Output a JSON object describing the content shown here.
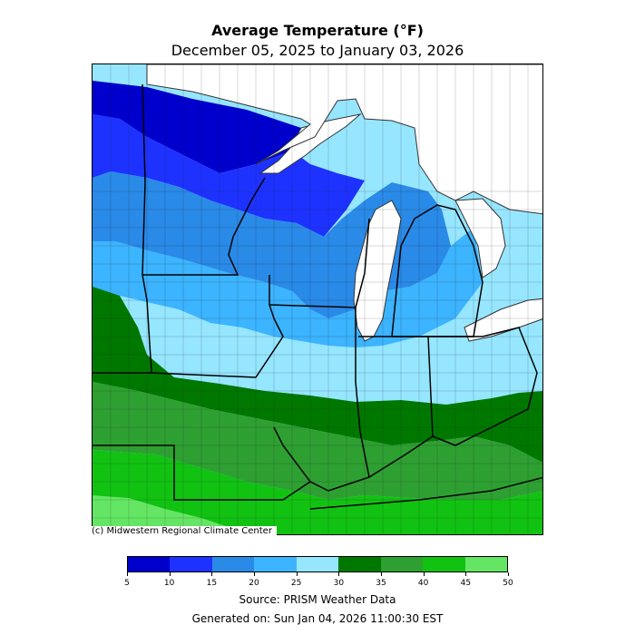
{
  "title": "Average Temperature (°F)",
  "subtitle": "December 05, 2025 to January 03, 2026",
  "credit": "(c) Midwestern Regional Climate Center",
  "source": "Source: PRISM Weather Data",
  "generated": "Generated on: Sun Jan 04, 2026 11:00:30 EST",
  "legend": {
    "bins": [
      {
        "min": 5,
        "max": 10,
        "color": "#0000cd"
      },
      {
        "min": 10,
        "max": 15,
        "color": "#1e32ff"
      },
      {
        "min": 15,
        "max": 20,
        "color": "#2a8ae8"
      },
      {
        "min": 20,
        "max": 25,
        "color": "#3cb4ff"
      },
      {
        "min": 25,
        "max": 30,
        "color": "#96e6ff"
      },
      {
        "min": 30,
        "max": 35,
        "color": "#007800"
      },
      {
        "min": 35,
        "max": 40,
        "color": "#2ea032"
      },
      {
        "min": 40,
        "max": 45,
        "color": "#12c212"
      },
      {
        "min": 45,
        "max": 50,
        "color": "#64e664"
      }
    ],
    "tick_labels": [
      "5",
      "10",
      "15",
      "20",
      "25",
      "30",
      "35",
      "40",
      "45",
      "50"
    ]
  },
  "colors": {
    "water": "#ffffff",
    "state_border": "#000000",
    "county_border": "#1a1a1a"
  }
}
